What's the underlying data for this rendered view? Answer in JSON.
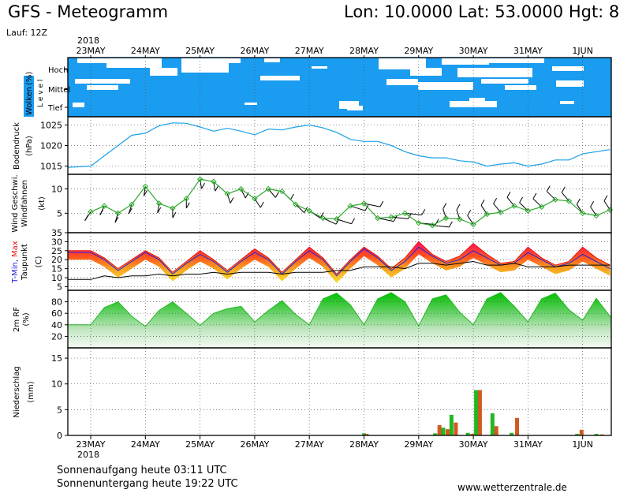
{
  "header": {
    "title": "GFS - Meteogramm",
    "location": "Lon: 10.0000 Lat: 53.0000 Hgt: 8",
    "run": "Lauf: 12Z",
    "year": "2018"
  },
  "footer": {
    "sunrise": "Sonnenaufgang heute 03:11 UTC",
    "sunset": "Sonnenuntergang heute 19:22 UTC",
    "website": "www.wetterzentrale.de"
  },
  "colors": {
    "cloud_bg": "#1a9cf0",
    "pressure": "#1aa0e8",
    "wind": "#2ca82c",
    "tmin": "#2222dd",
    "tmax": "#e81010",
    "rh": "#22b822",
    "precip_conv": "#22b822",
    "precip_large": "#d05a20"
  },
  "chart_data": [
    {
      "type": "area",
      "panel": "clouds",
      "ylabel_parts": [
        "Wolken",
        "(%)",
        "L e v e l"
      ],
      "levels": [
        "Hoch",
        "Mittel",
        "Tief"
      ],
      "x_dates": [
        "23MAY",
        "24MAY",
        "25MAY",
        "26MAY",
        "27MAY",
        "28MAY",
        "29MAY",
        "30MAY",
        "31MAY",
        "1JUN"
      ]
    },
    {
      "type": "line",
      "panel": "pressure",
      "ylabel_parts": [
        "Bodendruck",
        "(hPa)"
      ],
      "yticks": [
        1015,
        1020,
        1025
      ],
      "ylim": [
        1013,
        1027
      ],
      "x_days": [
        0,
        0.25,
        0.5,
        0.75,
        1,
        1.25,
        1.5,
        1.75,
        2,
        2.25,
        2.5,
        2.75,
        3,
        3.25,
        3.5,
        3.75,
        4,
        4.25,
        4.5,
        4.75,
        5,
        5.25,
        5.5,
        5.75,
        6,
        6.25,
        6.5,
        6.75,
        7,
        7.25,
        7.5,
        7.75,
        8,
        8.25,
        8.5,
        8.75,
        9,
        9.25,
        9.5
      ],
      "values": [
        1015,
        1017.5,
        1020,
        1022.5,
        1023,
        1024.8,
        1025.5,
        1025.4,
        1024.5,
        1023.5,
        1024.2,
        1023.5,
        1022.6,
        1024,
        1023.8,
        1024.5,
        1025,
        1024.3,
        1023.2,
        1021.5,
        1021,
        1021,
        1020,
        1018.5,
        1017.5,
        1017,
        1017,
        1016.3,
        1016,
        1015,
        1015.5,
        1015.8,
        1015,
        1015.5,
        1016.5,
        1016.5,
        1018,
        1018.5,
        1019
      ]
    },
    {
      "type": "line",
      "panel": "wind",
      "ylabel_parts": [
        "Wind Geschwi.",
        "Windfahnen",
        "(kt)"
      ],
      "yticks": [
        5,
        10
      ],
      "ylim": [
        1,
        13
      ],
      "x_days": [
        0,
        0.25,
        0.5,
        0.75,
        1,
        1.25,
        1.5,
        1.75,
        2,
        2.25,
        2.5,
        2.75,
        3,
        3.25,
        3.5,
        3.75,
        4,
        4.25,
        4.5,
        4.75,
        5,
        5.25,
        5.5,
        5.75,
        6,
        6.25,
        6.5,
        6.75,
        7,
        7.25,
        7.5,
        7.75,
        8,
        8.25,
        8.5,
        8.75,
        9,
        9.25,
        9.5
      ],
      "values": [
        5.3,
        6.5,
        5,
        6.8,
        10.5,
        7,
        6,
        8,
        12,
        11.5,
        9,
        10,
        8,
        10,
        9.5,
        6.8,
        5.5,
        4,
        3.8,
        6.5,
        7,
        4,
        4.2,
        5,
        3,
        2.5,
        4,
        3.8,
        2.7,
        4.8,
        5.2,
        6.5,
        5.5,
        6.3,
        7.8,
        7.5,
        5,
        4.5,
        5.7
      ],
      "barb_dirs_deg": [
        250,
        255,
        260,
        260,
        265,
        265,
        270,
        270,
        275,
        275,
        280,
        285,
        290,
        295,
        300,
        300,
        310,
        320,
        330,
        330,
        340,
        340,
        350,
        350,
        350,
        350,
        100,
        100,
        110,
        110,
        115,
        115,
        120,
        120,
        120,
        115,
        110,
        110,
        110
      ]
    },
    {
      "type": "line",
      "panel": "temperature",
      "ylabel_parts": [
        "T-Min,",
        "Max",
        "Taupunkt",
        "(C)"
      ],
      "yticks": [
        5,
        10,
        15,
        20,
        25,
        30,
        35
      ],
      "ylim": [
        3,
        35
      ],
      "x_days": [
        0,
        0.25,
        0.5,
        0.75,
        1,
        1.25,
        1.5,
        1.75,
        2,
        2.25,
        2.5,
        2.75,
        3,
        3.25,
        3.5,
        3.75,
        4,
        4.25,
        4.5,
        4.75,
        5,
        5.25,
        5.5,
        5.75,
        6,
        6.25,
        6.5,
        6.75,
        7,
        7.25,
        7.5,
        7.75,
        8,
        8.25,
        8.5,
        8.75,
        9,
        9.25,
        9.5
      ],
      "tmin": [
        24,
        20,
        14,
        19,
        24,
        20,
        12,
        18,
        23,
        19,
        13,
        19,
        24,
        20,
        12,
        19,
        25,
        20,
        11,
        19,
        26,
        21,
        14,
        19,
        27,
        22,
        18,
        20,
        25,
        21,
        17,
        18,
        24,
        20,
        16,
        18,
        23,
        19,
        15
      ],
      "tmax": [
        25,
        21,
        15,
        20,
        25,
        21,
        13,
        19,
        25,
        20,
        14,
        20,
        26,
        21,
        13,
        20,
        27,
        21,
        12,
        20,
        27,
        22,
        15,
        21,
        30,
        23,
        19,
        22,
        29,
        23,
        18,
        19,
        27,
        21,
        17,
        19,
        27,
        21,
        17
      ],
      "dewpoint": [
        9,
        11,
        10,
        11,
        11,
        12,
        11,
        12,
        12,
        13,
        12,
        13,
        13,
        13,
        12,
        13,
        13,
        13,
        14,
        14,
        16,
        16,
        16,
        15,
        18,
        18,
        17,
        18,
        19,
        17,
        17,
        18,
        16,
        16,
        16,
        17,
        17,
        17,
        17
      ]
    },
    {
      "type": "area",
      "panel": "humidity",
      "ylabel_parts": [
        "2m RF",
        "(%)"
      ],
      "yticks": [
        20,
        40,
        60,
        80
      ],
      "ylim": [
        0,
        100
      ],
      "x_days": [
        0,
        0.25,
        0.5,
        0.75,
        1,
        1.25,
        1.5,
        1.75,
        2,
        2.25,
        2.5,
        2.75,
        3,
        3.25,
        3.5,
        3.75,
        4,
        4.25,
        4.5,
        4.75,
        5,
        5.25,
        5.5,
        5.75,
        6,
        6.25,
        6.5,
        6.75,
        7,
        7.25,
        7.5,
        7.75,
        8,
        8.25,
        8.5,
        8.75,
        9,
        9.25,
        9.5
      ],
      "values": [
        40,
        70,
        80,
        55,
        37,
        65,
        80,
        60,
        39,
        60,
        68,
        72,
        45,
        65,
        82,
        58,
        40,
        85,
        95,
        75,
        40,
        85,
        96,
        80,
        38,
        85,
        92,
        62,
        40,
        85,
        96,
        72,
        45,
        85,
        95,
        66,
        48,
        86,
        55
      ]
    },
    {
      "type": "bar",
      "panel": "precipitation",
      "ylabel_parts": [
        "Niederschlag",
        "(mm)"
      ],
      "yticks": [
        0,
        5,
        10,
        15
      ],
      "ylim": [
        0,
        17
      ],
      "series": [
        {
          "name": "",
          "color": "#22b822",
          "x_days": [
            5.0,
            6.3,
            6.45,
            6.6,
            6.9,
            7.05,
            7.35,
            7.7,
            8.9,
            9.25
          ],
          "values": [
            0.4,
            0.4,
            1.5,
            4.0,
            0.5,
            8.8,
            4.3,
            0.5,
            0.3,
            0.3
          ]
        },
        {
          "name": "",
          "color": "#d05a20",
          "x_days": [
            5.05,
            6.38,
            6.53,
            6.68,
            6.98,
            7.12,
            7.42,
            7.8,
            8.98,
            9.35
          ],
          "values": [
            0.3,
            2.0,
            1.2,
            2.5,
            0.3,
            8.8,
            1.8,
            3.4,
            1.1,
            0.2
          ]
        }
      ]
    }
  ]
}
